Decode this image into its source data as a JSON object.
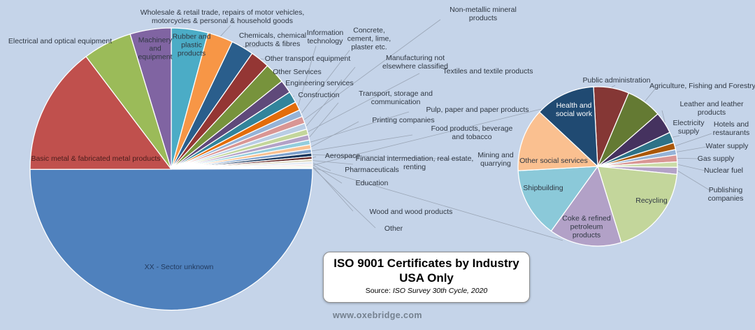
{
  "title": {
    "line1": "ISO 9001 Certificates by Industry",
    "line2": "USA Only",
    "source_label": "Source:",
    "source_value": "ISO Survey 30th Cycle, 2020"
  },
  "footer": {
    "website": "www.oxebridge.com"
  },
  "colors": {
    "background": "#C5D4E9",
    "leader_line": "#9AA5B5",
    "label_text": "#2F3742",
    "slice_border": "#FFFFFF",
    "footer_text": "#75818F"
  },
  "chart_data": [
    {
      "type": "pie",
      "id": "all-industries-pie",
      "unit": "percent_estimated",
      "slices": [
        {
          "label": "Rubber and plastic products",
          "value": 4.2,
          "color": "#4BACC6"
        },
        {
          "label": "Wholesale & retail trade, repairs of motor vehicles, motorcycles & personal & household goods",
          "value": 2.9,
          "color": "#F79646"
        },
        {
          "label": "Chemicals, chemical products & fibres",
          "value": 2.6,
          "color": "#2A5E8C"
        },
        {
          "label": "Other transport equipment",
          "value": 2.2,
          "color": "#943634"
        },
        {
          "label": "Other Services",
          "value": 2.4,
          "color": "#77933C"
        },
        {
          "label": "Engineering services",
          "value": 1.5,
          "color": "#5F497A"
        },
        {
          "label": "Construction",
          "value": 1.3,
          "color": "#31849B"
        },
        {
          "label": "Information technology",
          "value": 1.0,
          "color": "#E36C09"
        },
        {
          "label": "Concrete, cement, lime, plaster etc.",
          "value": 0.8,
          "color": "#95B3D7"
        },
        {
          "label": "Non-metallic mineral products",
          "value": 0.8,
          "color": "#D99694"
        },
        {
          "label": "Manufacturing not elsewhere classified",
          "value": 0.7,
          "color": "#B9CDE5"
        },
        {
          "label": "Textiles and textile products",
          "value": 0.65,
          "color": "#C3D69B"
        },
        {
          "label": "Transport, storage and communication",
          "value": 0.6,
          "color": "#B3A2C7"
        },
        {
          "label": "Pulp, paper and paper products",
          "value": 0.55,
          "color": "#93CDDD"
        },
        {
          "label": "Printing companies",
          "value": 0.5,
          "color": "#FAC08F"
        },
        {
          "label": "Food products, beverage and tobacco",
          "value": 0.45,
          "color": "#7BA0CD"
        },
        {
          "label": "Mining and quarrying",
          "value": 0.4,
          "color": "#17375E"
        },
        {
          "label": "Aerospace",
          "value": 0.3,
          "color": "#632423"
        },
        {
          "label": "Financial intermediation, real estate, renting",
          "value": 0.3,
          "color": "#DDD9C3"
        },
        {
          "label": "Pharmaceuticals",
          "value": 0.25,
          "color": "#D9E2F0"
        },
        {
          "label": "Education",
          "value": 0.2,
          "color": "#F2DCDB"
        },
        {
          "label": "Wood and wood products",
          "value": 0.2,
          "color": "#EBF1DE"
        },
        {
          "label": "Other",
          "value": 0.1,
          "color": "#F4F1F7"
        },
        {
          "label": "XX - Sector unknown",
          "value": 50.0,
          "color": "#4F81BD"
        },
        {
          "label": "Basic metal & fabricated metal products",
          "value": 14.7,
          "color": "#C0504D"
        },
        {
          "label": "Electrical and optical equipment",
          "value": 5.6,
          "color": "#9BBB59"
        },
        {
          "label": "Machinery and equipment",
          "value": 4.7,
          "color": "#8064A2"
        }
      ]
    },
    {
      "type": "pie",
      "id": "small-sectors-detail-pie",
      "unit": "percent_estimated",
      "slices": [
        {
          "label": "Public administration",
          "value": 7.2,
          "color": "#853735"
        },
        {
          "label": "Agriculture, Fishing and Forestry",
          "value": 7.2,
          "color": "#647A33"
        },
        {
          "label": "Leather and leather products",
          "value": 4.4,
          "color": "#45325F"
        },
        {
          "label": "Electricity supply",
          "value": 2.2,
          "color": "#2D7287"
        },
        {
          "label": "Hotels and restaurants",
          "value": 1.4,
          "color": "#AA5708"
        },
        {
          "label": "Water supply",
          "value": 1.1,
          "color": "#95B3D7"
        },
        {
          "label": "Gas supply",
          "value": 1.4,
          "color": "#D99694"
        },
        {
          "label": "Nuclear fuel",
          "value": 1.1,
          "color": "#CBDCA8"
        },
        {
          "label": "Publishing companies",
          "value": 1.4,
          "color": "#B3A2C7"
        },
        {
          "label": "Recycling",
          "value": 18.6,
          "color": "#C3D69B"
        },
        {
          "label": "Coke & refined petroleum products",
          "value": 14.7,
          "color": "#B2A1C7"
        },
        {
          "label": "Shipbuilding",
          "value": 14.2,
          "color": "#8BC9D9"
        },
        {
          "label": "Other social services",
          "value": 12.8,
          "color": "#FAC090"
        },
        {
          "label": "Health and social work",
          "value": 12.2,
          "color": "#204A72"
        }
      ]
    }
  ]
}
